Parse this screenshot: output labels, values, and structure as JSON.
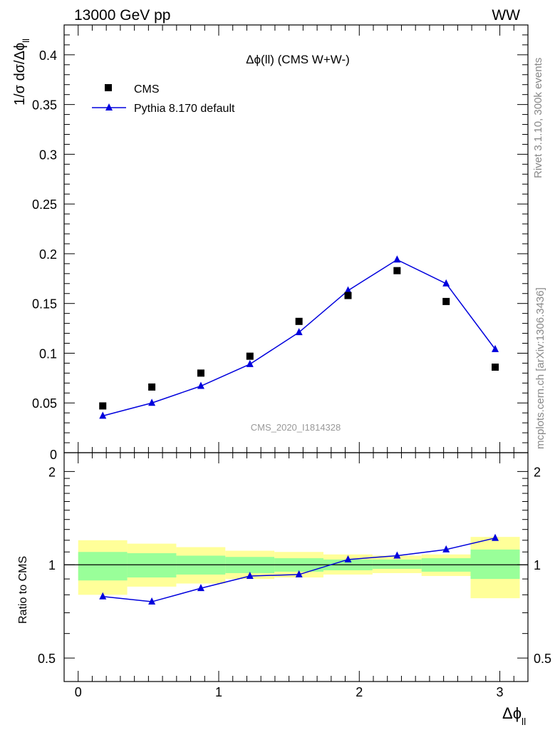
{
  "header": {
    "left": "13000 GeV pp",
    "right": "WW"
  },
  "side_labels": {
    "rivet": "Rivet 3.1.10,  300k events",
    "mcplots": "mcplots.cern.ch [arXiv:1306.3436]"
  },
  "colors": {
    "mc": "#0000dd",
    "data": "#000000",
    "band_outer": "#ffff99",
    "band_inner": "#99ff99"
  },
  "chart_data": [
    {
      "type": "scatter",
      "title": "Δϕ(ll) (CMS W+W-)",
      "watermark": "CMS_2020_I1814328",
      "ylabel_main": "1/σ dσ/Δϕ",
      "ylabel_sub": "ll",
      "xlim": [
        -0.1,
        3.2
      ],
      "ylim": [
        0,
        0.43
      ],
      "yticks": [
        0.05,
        0.1,
        0.15,
        0.2,
        0.25,
        0.3,
        0.35,
        0.4
      ],
      "ytick_labels": [
        "0.05",
        "0.1",
        "0.15",
        "0.2",
        "0.25",
        "0.3",
        "0.35",
        "0.4"
      ],
      "y_zero_label": "0",
      "x": [
        0.175,
        0.524,
        0.873,
        1.222,
        1.571,
        1.92,
        2.269,
        2.618,
        2.967
      ],
      "bin_edges": [
        0,
        0.349,
        0.698,
        1.047,
        1.396,
        1.745,
        2.094,
        2.443,
        2.792,
        3.142
      ],
      "legend": [
        "CMS",
        "Pythia 8.170 default"
      ],
      "series": [
        {
          "name": "CMS",
          "marker": "square",
          "values": [
            0.047,
            0.066,
            0.08,
            0.097,
            0.132,
            0.158,
            0.183,
            0.152,
            0.086
          ]
        },
        {
          "name": "Pythia 8.170 default",
          "marker": "triangle",
          "values": [
            0.037,
            0.05,
            0.067,
            0.089,
            0.121,
            0.163,
            0.194,
            0.17,
            0.104
          ]
        }
      ]
    },
    {
      "type": "line",
      "ylabel": "Ratio to CMS",
      "xlabel_main": "Δϕ",
      "xlabel_sub": "ll",
      "xlim": [
        -0.1,
        3.2
      ],
      "ylim": [
        0.42,
        2.3
      ],
      "log_y": true,
      "yticks": [
        0.5,
        1,
        2
      ],
      "ytick_labels": [
        "0.5",
        "1",
        "2"
      ],
      "xticks": [
        0,
        1,
        2,
        3
      ],
      "xtick_labels": [
        "0",
        "1",
        "2",
        "3"
      ],
      "x": [
        0.175,
        0.524,
        0.873,
        1.222,
        1.571,
        1.92,
        2.269,
        2.618,
        2.967
      ],
      "bin_edges": [
        0,
        0.349,
        0.698,
        1.047,
        1.396,
        1.745,
        2.094,
        2.443,
        2.792,
        3.142
      ],
      "ratio": [
        0.79,
        0.76,
        0.84,
        0.92,
        0.93,
        1.04,
        1.07,
        1.12,
        1.22
      ],
      "band_inner": [
        [
          0.89,
          1.1
        ],
        [
          0.91,
          1.09
        ],
        [
          0.93,
          1.07
        ],
        [
          0.94,
          1.06
        ],
        [
          0.95,
          1.05
        ],
        [
          0.96,
          1.04
        ],
        [
          0.97,
          1.04
        ],
        [
          0.95,
          1.05
        ],
        [
          0.9,
          1.12
        ]
      ],
      "band_outer": [
        [
          0.8,
          1.2
        ],
        [
          0.85,
          1.17
        ],
        [
          0.87,
          1.14
        ],
        [
          0.9,
          1.11
        ],
        [
          0.91,
          1.1
        ],
        [
          0.93,
          1.08
        ],
        [
          0.94,
          1.07
        ],
        [
          0.92,
          1.08
        ],
        [
          0.78,
          1.23
        ]
      ]
    }
  ]
}
